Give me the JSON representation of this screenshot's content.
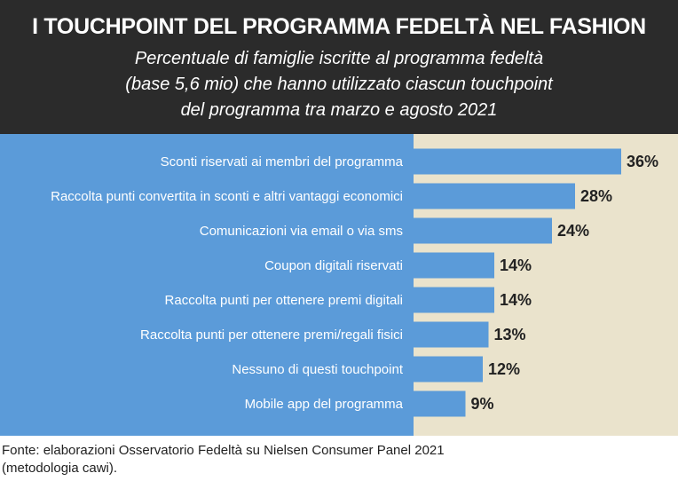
{
  "header": {
    "title": "I TOUCHPOINT DEL PROGRAMMA FEDELTÀ NEL FASHION",
    "subtitle_lines": [
      "Percentuale di famiglie iscritte al programma fedeltà",
      "(base 5,6 mio) che hanno utilizzato ciascun touchpoint",
      "del programma tra marzo e agosto 2021"
    ]
  },
  "chart_data": {
    "type": "bar",
    "orientation": "horizontal",
    "categories": [
      "Sconti riservati ai membri del programma",
      "Raccolta punti convertita in sconti e altri vantaggi economici",
      "Comunicazioni via email o via sms",
      "Coupon digitali riservati",
      "Raccolta punti per ottenere premi digitali",
      "Raccolta punti per ottenere premi/regali fisici",
      "Nessuno di questi touchpoint",
      "Mobile app del programma"
    ],
    "values": [
      36,
      28,
      24,
      14,
      14,
      13,
      12,
      9
    ],
    "value_labels": [
      "36%",
      "28%",
      "24%",
      "14%",
      "14%",
      "13%",
      "12%",
      "9%"
    ],
    "unit": "%",
    "colors": {
      "bar": "#5b9bd9",
      "label_panel": "#5b9bd9",
      "plot_background": "#eae3cc",
      "header_background": "#2b2b2b"
    }
  },
  "footer": {
    "source_lines": [
      "Fonte: elaborazioni Osservatorio Fedeltà su Nielsen Consumer Panel 2021",
      "(metodologia cawi)."
    ]
  }
}
